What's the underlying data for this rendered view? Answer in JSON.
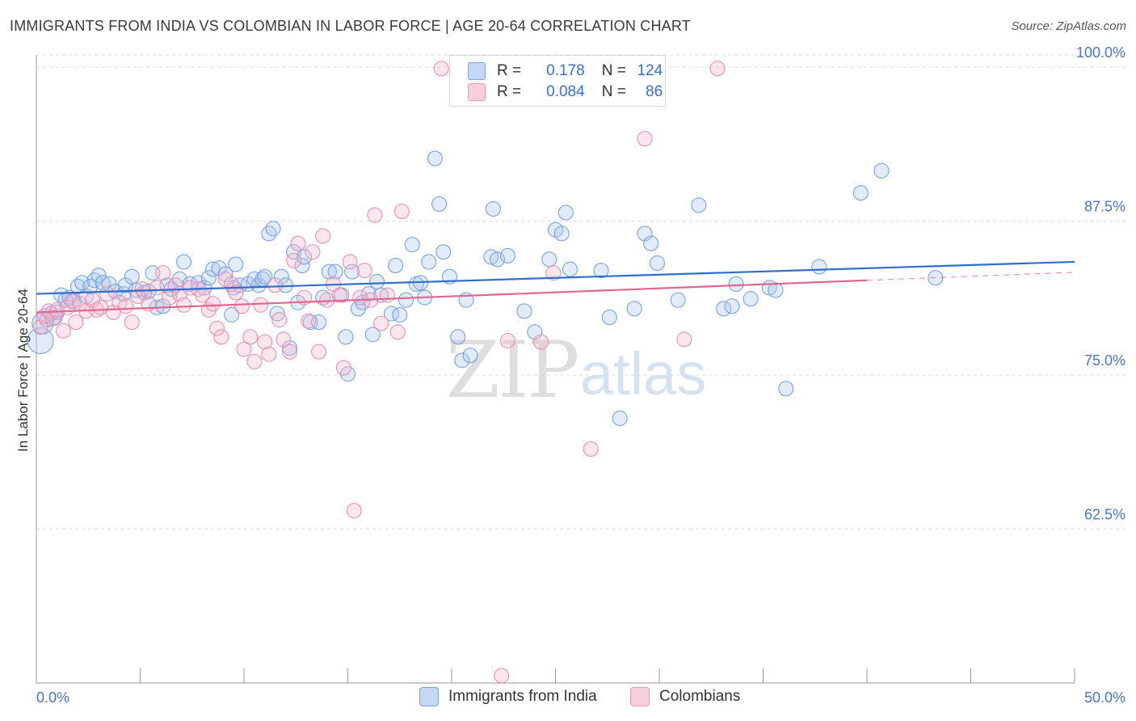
{
  "header": {
    "title": "IMMIGRANTS FROM INDIA VS COLOMBIAN IN LABOR FORCE | AGE 20-64 CORRELATION CHART",
    "source": "Source: ZipAtlas.com"
  },
  "legend": {
    "rows": [
      {
        "r_label": "R =",
        "r_value": "0.178",
        "n_label": "N =",
        "n_value": "124",
        "color": "#a9c5f0"
      },
      {
        "r_label": "R =",
        "r_value": "0.084",
        "n_label": "N =",
        "n_value": "86",
        "color": "#f5b8cc"
      }
    ]
  },
  "bottom_legend": {
    "series1": "Immigrants from India",
    "series2": "Colombians"
  },
  "watermark": {
    "zip": "ZIP",
    "atlas": "atlas"
  },
  "chart_data": {
    "type": "scatter",
    "title": "IMMIGRANTS FROM INDIA VS COLOMBIAN IN LABOR FORCE | AGE 20-64 CORRELATION CHART",
    "xlabel": "",
    "ylabel": "In Labor Force | Age 20-64",
    "xlim": [
      0,
      50
    ],
    "ylim": [
      50,
      101
    ],
    "x_tick_labels": [
      "0.0%",
      "50.0%"
    ],
    "y_ticks": [
      62.5,
      75.0,
      87.5,
      100.0
    ],
    "y_tick_labels": [
      "62.5%",
      "75.0%",
      "87.5%",
      "100.0%"
    ],
    "grid": true,
    "colors": {
      "india": "#6f9be0",
      "colombians": "#ee8fae",
      "india_line": "#2f6fcc",
      "colombians_line": "#e0668f"
    },
    "series": [
      {
        "name": "Immigrants from India",
        "trend": {
          "x": [
            0,
            50
          ],
          "y": [
            81.6,
            84.2
          ]
        },
        "points": [
          [
            0.2,
            77.8
          ],
          [
            0.3,
            79.2
          ],
          [
            0.5,
            79.5
          ],
          [
            0.7,
            80.0
          ],
          [
            0.9,
            79.7
          ],
          [
            1.0,
            80.1
          ],
          [
            1.2,
            81.5
          ],
          [
            1.4,
            81.1
          ],
          [
            1.6,
            81.3
          ],
          [
            1.8,
            81.0
          ],
          [
            2.0,
            82.2
          ],
          [
            2.2,
            82.5
          ],
          [
            2.4,
            81.4
          ],
          [
            2.6,
            82.2
          ],
          [
            2.8,
            82.7
          ],
          [
            3.0,
            83.1
          ],
          [
            3.2,
            82.5
          ],
          [
            3.5,
            82.4
          ],
          [
            3.8,
            81.8
          ],
          [
            4.2,
            81.6
          ],
          [
            4.3,
            82.3
          ],
          [
            4.6,
            83.0
          ],
          [
            4.8,
            81.9
          ],
          [
            5.2,
            81.7
          ],
          [
            5.4,
            81.8
          ],
          [
            5.6,
            83.3
          ],
          [
            5.8,
            80.5
          ],
          [
            6.1,
            80.6
          ],
          [
            6.3,
            82.3
          ],
          [
            6.5,
            82.0
          ],
          [
            6.9,
            82.8
          ],
          [
            7.1,
            84.2
          ],
          [
            7.4,
            82.4
          ],
          [
            7.8,
            82.5
          ],
          [
            8.1,
            82.1
          ],
          [
            8.3,
            82.9
          ],
          [
            8.5,
            83.6
          ],
          [
            8.8,
            83.7
          ],
          [
            9.1,
            83.2
          ],
          [
            9.4,
            79.9
          ],
          [
            9.5,
            82.1
          ],
          [
            9.6,
            84.0
          ],
          [
            9.8,
            82.3
          ],
          [
            10.2,
            82.4
          ],
          [
            10.5,
            82.8
          ],
          [
            10.7,
            82.3
          ],
          [
            10.9,
            82.8
          ],
          [
            11.0,
            83.0
          ],
          [
            11.2,
            86.5
          ],
          [
            11.4,
            86.9
          ],
          [
            11.6,
            80.0
          ],
          [
            11.8,
            83.0
          ],
          [
            12.0,
            82.3
          ],
          [
            12.2,
            77.2
          ],
          [
            12.4,
            85.0
          ],
          [
            12.6,
            80.9
          ],
          [
            12.8,
            83.9
          ],
          [
            12.9,
            84.6
          ],
          [
            13.2,
            79.3
          ],
          [
            13.6,
            79.3
          ],
          [
            13.8,
            81.3
          ],
          [
            14.1,
            83.4
          ],
          [
            14.4,
            83.4
          ],
          [
            14.7,
            81.5
          ],
          [
            14.9,
            78.1
          ],
          [
            15.0,
            75.1
          ],
          [
            15.2,
            83.4
          ],
          [
            15.5,
            80.4
          ],
          [
            15.7,
            80.9
          ],
          [
            16.0,
            81.6
          ],
          [
            16.2,
            78.3
          ],
          [
            16.4,
            82.6
          ],
          [
            16.6,
            81.5
          ],
          [
            17.1,
            80.0
          ],
          [
            17.3,
            83.9
          ],
          [
            17.5,
            79.9
          ],
          [
            17.8,
            81.1
          ],
          [
            18.1,
            85.6
          ],
          [
            18.3,
            82.4
          ],
          [
            18.5,
            82.5
          ],
          [
            18.7,
            81.3
          ],
          [
            18.9,
            84.2
          ],
          [
            19.2,
            92.6
          ],
          [
            19.4,
            88.9
          ],
          [
            19.6,
            85.0
          ],
          [
            19.9,
            83.0
          ],
          [
            20.3,
            78.1
          ],
          [
            20.5,
            76.2
          ],
          [
            20.7,
            81.1
          ],
          [
            20.9,
            76.6
          ],
          [
            21.9,
            84.6
          ],
          [
            22.0,
            88.5
          ],
          [
            22.2,
            84.4
          ],
          [
            22.7,
            84.7
          ],
          [
            23.5,
            80.2
          ],
          [
            24.0,
            78.5
          ],
          [
            24.7,
            84.4
          ],
          [
            25.0,
            86.8
          ],
          [
            25.3,
            86.5
          ],
          [
            25.5,
            88.2
          ],
          [
            25.7,
            83.6
          ],
          [
            27.2,
            83.5
          ],
          [
            27.6,
            79.7
          ],
          [
            28.1,
            71.5
          ],
          [
            28.8,
            80.4
          ],
          [
            29.3,
            86.5
          ],
          [
            29.6,
            85.7
          ],
          [
            29.9,
            84.1
          ],
          [
            30.9,
            81.1
          ],
          [
            31.9,
            88.8
          ],
          [
            33.1,
            80.4
          ],
          [
            33.5,
            80.6
          ],
          [
            33.7,
            82.4
          ],
          [
            34.4,
            81.2
          ],
          [
            35.3,
            82.1
          ],
          [
            35.6,
            81.9
          ],
          [
            36.1,
            73.9
          ],
          [
            37.7,
            83.8
          ],
          [
            39.7,
            89.8
          ],
          [
            40.7,
            91.6
          ],
          [
            43.3,
            82.9
          ]
        ]
      },
      {
        "name": "Colombians",
        "trend": {
          "x": [
            0,
            40
          ],
          "y": [
            80.1,
            82.7
          ]
        },
        "points": [
          [
            0.2,
            78.9
          ],
          [
            0.4,
            79.8
          ],
          [
            0.6,
            80.2
          ],
          [
            0.8,
            79.6
          ],
          [
            1.0,
            80.3
          ],
          [
            1.3,
            78.6
          ],
          [
            1.5,
            80.5
          ],
          [
            1.7,
            81.0
          ],
          [
            1.9,
            79.3
          ],
          [
            2.1,
            80.8
          ],
          [
            2.4,
            80.2
          ],
          [
            2.7,
            81.1
          ],
          [
            2.9,
            80.3
          ],
          [
            3.1,
            80.5
          ],
          [
            3.4,
            81.6
          ],
          [
            3.7,
            80.1
          ],
          [
            4.0,
            80.9
          ],
          [
            4.3,
            80.6
          ],
          [
            4.6,
            79.3
          ],
          [
            4.9,
            81.4
          ],
          [
            5.1,
            82.0
          ],
          [
            5.4,
            80.8
          ],
          [
            5.8,
            82.1
          ],
          [
            6.1,
            83.3
          ],
          [
            6.4,
            81.3
          ],
          [
            6.7,
            82.3
          ],
          [
            6.9,
            81.6
          ],
          [
            7.1,
            80.7
          ],
          [
            7.4,
            82.1
          ],
          [
            7.8,
            82.0
          ],
          [
            8.0,
            81.5
          ],
          [
            8.3,
            80.3
          ],
          [
            8.5,
            80.8
          ],
          [
            8.7,
            78.8
          ],
          [
            8.9,
            78.1
          ],
          [
            9.1,
            82.8
          ],
          [
            9.4,
            82.4
          ],
          [
            9.6,
            81.7
          ],
          [
            9.9,
            80.6
          ],
          [
            10.0,
            77.1
          ],
          [
            10.3,
            78.1
          ],
          [
            10.5,
            76.1
          ],
          [
            10.8,
            80.7
          ],
          [
            11.0,
            77.7
          ],
          [
            11.2,
            76.7
          ],
          [
            11.5,
            82.3
          ],
          [
            11.7,
            79.5
          ],
          [
            11.9,
            77.9
          ],
          [
            12.2,
            76.9
          ],
          [
            12.4,
            84.3
          ],
          [
            12.6,
            85.7
          ],
          [
            12.9,
            81.3
          ],
          [
            13.1,
            79.4
          ],
          [
            13.3,
            85.0
          ],
          [
            13.6,
            76.9
          ],
          [
            13.8,
            86.3
          ],
          [
            14.0,
            81.1
          ],
          [
            14.3,
            82.4
          ],
          [
            14.6,
            81.5
          ],
          [
            14.8,
            75.6
          ],
          [
            15.1,
            84.2
          ],
          [
            15.3,
            64.0
          ],
          [
            15.6,
            81.3
          ],
          [
            15.8,
            83.5
          ],
          [
            16.1,
            81.1
          ],
          [
            16.3,
            88.0
          ],
          [
            16.6,
            79.2
          ],
          [
            16.9,
            81.5
          ],
          [
            17.4,
            78.5
          ],
          [
            17.6,
            88.3
          ],
          [
            19.5,
            99.9
          ],
          [
            22.4,
            50.6
          ],
          [
            22.7,
            77.8
          ],
          [
            24.3,
            77.7
          ],
          [
            24.9,
            83.3
          ],
          [
            26.7,
            69.0
          ],
          [
            29.3,
            94.2
          ],
          [
            31.2,
            77.9
          ],
          [
            32.8,
            99.9
          ]
        ]
      }
    ]
  }
}
